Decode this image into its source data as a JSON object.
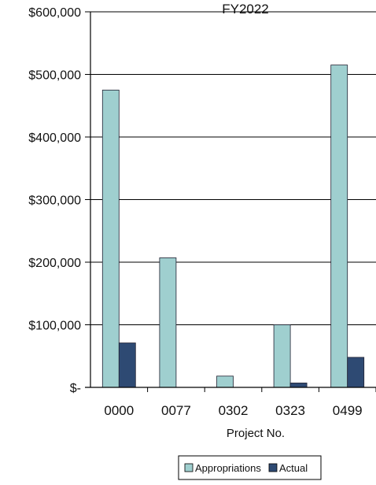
{
  "chart_data": {
    "type": "bar",
    "title": "FY2022",
    "xlabel": "Project No.",
    "ylabel": "",
    "categories": [
      "0000",
      "0077",
      "0302",
      "0323",
      "0499"
    ],
    "series": [
      {
        "name": "Appropriations",
        "values": [
          475000,
          207000,
          18000,
          100000,
          515000
        ],
        "color": "#9fcfcf"
      },
      {
        "name": "Actual",
        "values": [
          71000,
          0,
          0,
          7000,
          48000
        ],
        "color": "#2e4a73"
      }
    ],
    "ylim": [
      0,
      600000
    ],
    "yticks": [
      0,
      100000,
      200000,
      300000,
      400000,
      500000,
      600000
    ],
    "ytick_labels": [
      "$-",
      "$100,000",
      "$200,000",
      "$300,000",
      "$400,000",
      "$500,000",
      "$600,000"
    ],
    "grid": true,
    "legend": "bottom-center"
  }
}
